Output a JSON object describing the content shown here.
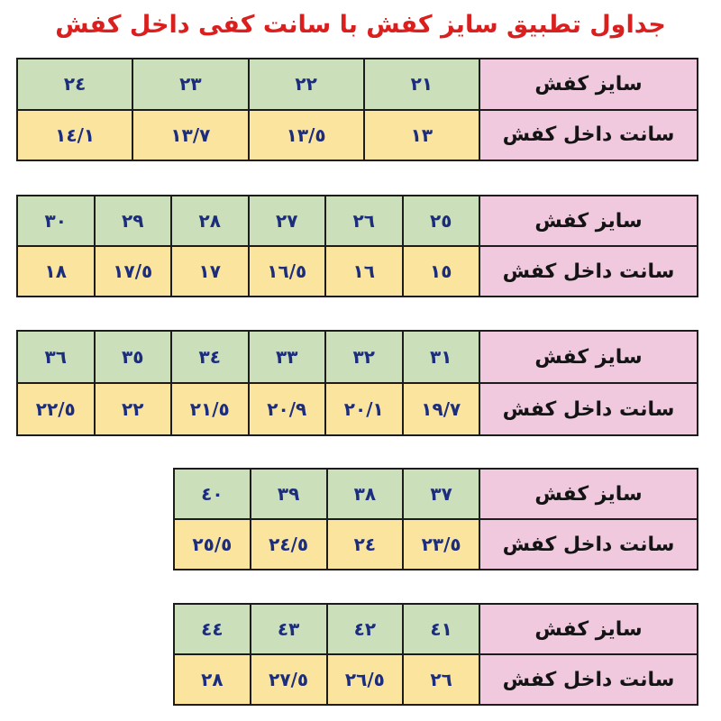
{
  "title": "جداول تطبیق سایز کفش با سانت کفی داخل کفش",
  "labels": {
    "size": "سایز کفش",
    "inner_cm": "سانت داخل کفش"
  },
  "colors": {
    "title_red": "#da1f1f",
    "size_row_green": "#cadfba",
    "cm_row_yellow": "#fbe59e",
    "header_pink": "#f0c9df",
    "digit_navy": "#1c2d7d",
    "grid_border": "#1c1c1c",
    "background": "#ffffff"
  },
  "tables": [
    {
      "range": "21-24",
      "sizes": [
        "٢١",
        "٢٢",
        "٢٣",
        "٢٤"
      ],
      "cms": [
        "١٣",
        "١٣/٥",
        "١٣/٧",
        "١٤/١"
      ]
    },
    {
      "range": "25-30",
      "sizes": [
        "٢٥",
        "٢٦",
        "٢٧",
        "٢٨",
        "٢٩",
        "٣٠"
      ],
      "cms": [
        "١٥",
        "١٦",
        "١٦/٥",
        "١٧",
        "١٧/٥",
        "١٨"
      ]
    },
    {
      "range": "31-36",
      "sizes": [
        "٣١",
        "٣٢",
        "٣٣",
        "٣٤",
        "٣٥",
        "٣٦"
      ],
      "cms": [
        "١٩/٧",
        "٢٠/١",
        "٢٠/٩",
        "٢١/٥",
        "٢٢",
        "٢٢/٥"
      ]
    },
    {
      "range": "37-40",
      "sizes": [
        "٣٧",
        "٣٨",
        "٣٩",
        "٤٠"
      ],
      "cms": [
        "٢٣/٥",
        "٢٤",
        "٢٤/٥",
        "٢٥/٥"
      ]
    },
    {
      "range": "41-44",
      "sizes": [
        "٤١",
        "٤٢",
        "٤٣",
        "٤٤"
      ],
      "cms": [
        "٢٦",
        "٢٦/٥",
        "٢٧/٥",
        "٢٨"
      ]
    }
  ]
}
